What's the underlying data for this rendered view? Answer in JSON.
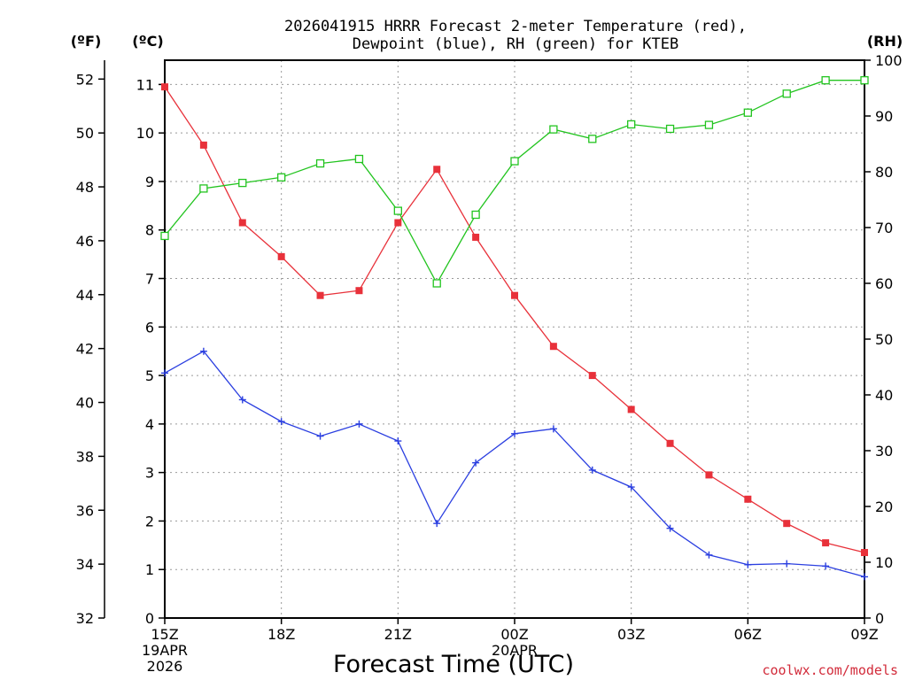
{
  "chart_data": {
    "type": "line",
    "title_line1": "2026041915 HRRR Forecast 2-meter Temperature (red),",
    "title_line2": "Dewpoint (blue), RH (green) for KTEB",
    "axis_unit_f": "(ºF)",
    "axis_unit_c": "(ºC)",
    "axis_unit_rh": "(RH)",
    "xlabel": "Forecast Time (UTC)",
    "credit": "coolwx.com/models",
    "x_ticks": [
      {
        "h": 0,
        "label": "15Z",
        "sub1": "19APR",
        "sub2": "2026"
      },
      {
        "h": 3,
        "label": "18Z",
        "sub1": "",
        "sub2": ""
      },
      {
        "h": 6,
        "label": "21Z",
        "sub1": "",
        "sub2": ""
      },
      {
        "h": 9,
        "label": "00Z",
        "sub1": "20APR",
        "sub2": ""
      },
      {
        "h": 12,
        "label": "03Z",
        "sub1": "",
        "sub2": ""
      },
      {
        "h": 15,
        "label": "06Z",
        "sub1": "",
        "sub2": ""
      },
      {
        "h": 18,
        "label": "09Z",
        "sub1": "",
        "sub2": ""
      }
    ],
    "celsius_ticks": [
      "0",
      "1",
      "2",
      "3",
      "4",
      "5",
      "6",
      "7",
      "8",
      "9",
      "10",
      "11"
    ],
    "fahrenheit_ticks": [
      "32",
      "34",
      "36",
      "38",
      "40",
      "42",
      "44",
      "46",
      "48",
      "50",
      "52"
    ],
    "rh_ticks": [
      "0",
      "10",
      "20",
      "30",
      "40",
      "50",
      "60",
      "70",
      "80",
      "90",
      "100"
    ],
    "ylim_c": [
      0,
      11.5
    ],
    "ylim_rh": [
      0,
      100
    ],
    "xlim_hours": [
      0,
      18
    ],
    "series": [
      {
        "name": "Temperature",
        "unit": "C",
        "color": "#e8313a",
        "marker": "filled-square",
        "values": [
          10.95,
          9.75,
          8.15,
          7.45,
          6.65,
          6.75,
          8.15,
          9.25,
          7.85,
          6.65,
          5.6,
          5.0,
          4.3,
          3.6,
          2.95,
          2.45,
          1.95,
          1.55,
          1.35
        ]
      },
      {
        "name": "Dewpoint",
        "unit": "C",
        "color": "#2b3fe0",
        "marker": "plus",
        "values": [
          5.05,
          5.5,
          4.5,
          4.05,
          3.75,
          4.0,
          3.65,
          1.95,
          3.2,
          3.8,
          3.9,
          3.05,
          2.7,
          1.85,
          1.3,
          1.1,
          1.12,
          1.07,
          0.85
        ]
      },
      {
        "name": "RH",
        "unit": "%",
        "color": "#22c41f",
        "marker": "open-square",
        "values": [
          68.5,
          77.0,
          78.0,
          79.0,
          81.5,
          82.3,
          73.0,
          60.0,
          72.3,
          81.9,
          87.6,
          85.9,
          88.5,
          87.7,
          88.4,
          90.6,
          94.0,
          96.4,
          96.4
        ]
      }
    ]
  }
}
